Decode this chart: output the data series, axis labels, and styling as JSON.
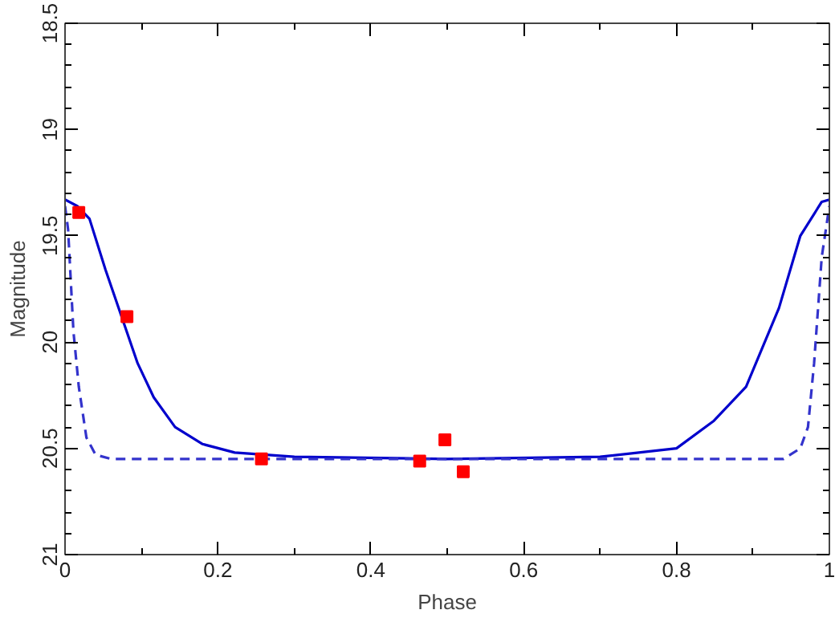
{
  "chart_data": {
    "type": "line",
    "xlabel": "Phase",
    "ylabel": "Magnitude",
    "xlim": [
      0,
      1
    ],
    "xticks": [
      0,
      0.2,
      0.4,
      0.6,
      0.8,
      1
    ],
    "ylim": [
      21,
      18.5
    ],
    "yticks": [
      18.5,
      19,
      19.5,
      20,
      20.5,
      21
    ],
    "grid": false,
    "series": [
      {
        "color": "#0000cc",
        "line_style": "solid",
        "x": [
          0,
          0.016,
          0.032,
          0.053,
          0.074,
          0.095,
          0.116,
          0.144,
          0.18,
          0.222,
          0.3,
          0.5,
          0.7,
          0.8,
          0.849,
          0.891,
          0.934,
          0.962,
          0.99,
          1
        ],
        "values": [
          19.33,
          19.36,
          19.42,
          19.66,
          19.88,
          20.1,
          20.26,
          20.4,
          20.48,
          20.52,
          20.54,
          20.55,
          20.54,
          20.5,
          20.37,
          20.21,
          19.84,
          19.5,
          19.34,
          19.33
        ]
      },
      {
        "color": "#3333cc",
        "line_style": "dashed",
        "x": [
          0,
          0.004,
          0.011,
          0.018,
          0.028,
          0.04,
          0.06,
          0.3,
          0.5,
          0.7,
          0.94,
          0.962,
          0.972,
          0.98,
          0.99,
          1
        ],
        "values": [
          19.36,
          19.47,
          19.95,
          20.21,
          20.45,
          20.53,
          20.55,
          20.55,
          20.55,
          20.55,
          20.55,
          20.5,
          20.4,
          20.1,
          19.6,
          19.36
        ]
      },
      {
        "type": "scatter",
        "marker": "square",
        "color": "#ff0000",
        "x": [
          0.018,
          0.081,
          0.257,
          0.464,
          0.497,
          0.521
        ],
        "values": [
          19.39,
          19.88,
          20.55,
          20.56,
          20.46,
          20.61
        ]
      }
    ]
  }
}
